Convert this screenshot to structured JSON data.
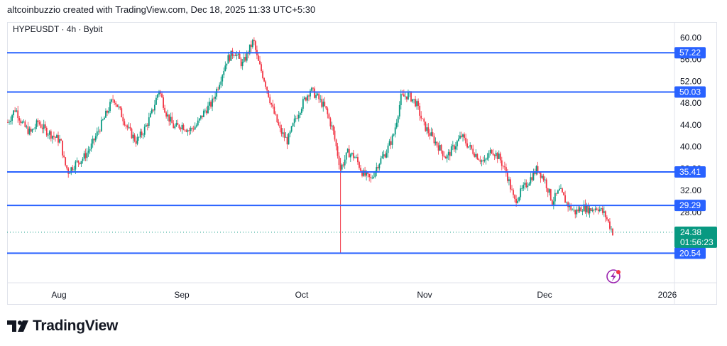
{
  "header": {
    "credit": "altcoinbuzzio created with TradingView.com, Dec 18, 2025 11:33 UTC+5:30"
  },
  "symbol": {
    "title": "HYPEUSDT · 4h · Bybit"
  },
  "branding": {
    "name": "TradingView"
  },
  "chart_data": {
    "type": "candlestick",
    "y_axis": {
      "ticks": [
        "60.00",
        "56.00",
        "52.00",
        "48.00",
        "44.00",
        "40.00",
        "36.00",
        "32.00",
        "28.00"
      ],
      "ylim": [
        18.9,
        60.5
      ],
      "side": "right"
    },
    "x_axis": {
      "ticks": [
        "Aug",
        "Sep",
        "Oct",
        "Nov",
        "Dec",
        "2026"
      ]
    },
    "horizontal_levels": [
      {
        "label": "57.22",
        "value": 57.22,
        "color": "#2962ff"
      },
      {
        "label": "50.03",
        "value": 50.03,
        "color": "#2962ff"
      },
      {
        "label": "35.41",
        "value": 35.41,
        "color": "#2962ff"
      },
      {
        "label": "29.29",
        "value": 29.29,
        "color": "#2962ff"
      },
      {
        "label": "20.54",
        "value": 20.54,
        "color": "#2962ff"
      }
    ],
    "last_price": {
      "label": "24.38",
      "value": 24.38,
      "countdown": "01:56:23",
      "color": "#089981"
    },
    "series": [
      {
        "name": "",
        "points": [
          {
            "x": 0,
            "y": 44.5
          },
          {
            "x": 2,
            "y": 47
          },
          {
            "x": 4,
            "y": 44
          },
          {
            "x": 6,
            "y": 42.5
          },
          {
            "x": 8,
            "y": 44.5
          },
          {
            "x": 10,
            "y": 43
          },
          {
            "x": 12,
            "y": 42
          },
          {
            "x": 14,
            "y": 41
          },
          {
            "x": 15,
            "y": 37
          },
          {
            "x": 16,
            "y": 35.5
          },
          {
            "x": 18,
            "y": 37
          },
          {
            "x": 20,
            "y": 38
          },
          {
            "x": 22,
            "y": 40
          },
          {
            "x": 24,
            "y": 43
          },
          {
            "x": 26,
            "y": 46
          },
          {
            "x": 28,
            "y": 49
          },
          {
            "x": 30,
            "y": 46
          },
          {
            "x": 32,
            "y": 43
          },
          {
            "x": 34,
            "y": 41
          },
          {
            "x": 36,
            "y": 43
          },
          {
            "x": 38,
            "y": 46
          },
          {
            "x": 40,
            "y": 50.5
          },
          {
            "x": 42,
            "y": 46
          },
          {
            "x": 44,
            "y": 43.5
          },
          {
            "x": 46,
            "y": 44
          },
          {
            "x": 48,
            "y": 43
          },
          {
            "x": 50,
            "y": 44
          },
          {
            "x": 52,
            "y": 46.5
          },
          {
            "x": 54,
            "y": 48
          },
          {
            "x": 56,
            "y": 52
          },
          {
            "x": 58,
            "y": 56
          },
          {
            "x": 60,
            "y": 57.5
          },
          {
            "x": 62,
            "y": 55
          },
          {
            "x": 64,
            "y": 58
          },
          {
            "x": 65,
            "y": 59.5
          },
          {
            "x": 66,
            "y": 56
          },
          {
            "x": 68,
            "y": 52
          },
          {
            "x": 70,
            "y": 47
          },
          {
            "x": 72,
            "y": 43
          },
          {
            "x": 74,
            "y": 41
          },
          {
            "x": 76,
            "y": 45
          },
          {
            "x": 78,
            "y": 48
          },
          {
            "x": 80,
            "y": 50.5
          },
          {
            "x": 82,
            "y": 49
          },
          {
            "x": 84,
            "y": 47
          },
          {
            "x": 86,
            "y": 43
          },
          {
            "x": 88,
            "y": 36
          },
          {
            "x": 90,
            "y": 39
          },
          {
            "x": 92,
            "y": 38
          },
          {
            "x": 94,
            "y": 35
          },
          {
            "x": 96,
            "y": 34
          },
          {
            "x": 98,
            "y": 37
          },
          {
            "x": 100,
            "y": 39
          },
          {
            "x": 102,
            "y": 42
          },
          {
            "x": 104,
            "y": 49
          },
          {
            "x": 106,
            "y": 49.5
          },
          {
            "x": 108,
            "y": 48
          },
          {
            "x": 110,
            "y": 44
          },
          {
            "x": 112,
            "y": 42
          },
          {
            "x": 114,
            "y": 40
          },
          {
            "x": 116,
            "y": 38
          },
          {
            "x": 118,
            "y": 40
          },
          {
            "x": 120,
            "y": 42
          },
          {
            "x": 122,
            "y": 40
          },
          {
            "x": 124,
            "y": 38.5
          },
          {
            "x": 126,
            "y": 37
          },
          {
            "x": 128,
            "y": 39.5
          },
          {
            "x": 130,
            "y": 38
          },
          {
            "x": 132,
            "y": 35
          },
          {
            "x": 134,
            "y": 30
          },
          {
            "x": 136,
            "y": 32
          },
          {
            "x": 138,
            "y": 34
          },
          {
            "x": 140,
            "y": 36
          },
          {
            "x": 142,
            "y": 34
          },
          {
            "x": 144,
            "y": 30
          },
          {
            "x": 146,
            "y": 32
          },
          {
            "x": 148,
            "y": 29.5
          },
          {
            "x": 150,
            "y": 28
          },
          {
            "x": 152,
            "y": 29
          },
          {
            "x": 154,
            "y": 28.5
          },
          {
            "x": 156,
            "y": 29
          },
          {
            "x": 158,
            "y": 27.5
          },
          {
            "x": 160,
            "y": 24.4
          }
        ]
      }
    ],
    "spike": {
      "x": 88,
      "low": 20.6
    }
  }
}
